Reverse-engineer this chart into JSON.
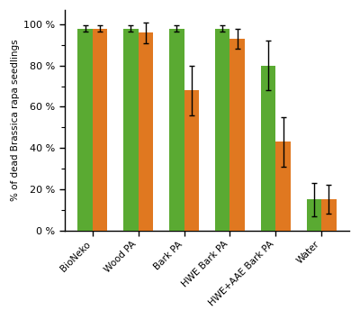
{
  "categories": [
    "BioNeko",
    "Wood PA",
    "Bark PA",
    "HWE Bark PA",
    "HWE+AAE Bark PA",
    "Water"
  ],
  "values_12_5": [
    98,
    98,
    98,
    98,
    80,
    15
  ],
  "values_5": [
    98,
    96,
    68,
    93,
    43,
    15
  ],
  "err_12_5": [
    1.5,
    1.5,
    1.5,
    1.5,
    12,
    8
  ],
  "err_5": [
    1.5,
    5,
    12,
    5,
    12,
    7
  ],
  "color_12_5": "#5aaa32",
  "color_5": "#e07820",
  "ylabel": "% of dead Brassica rapa seedlings",
  "ylim": [
    0,
    107
  ],
  "yticks": [
    0,
    20,
    40,
    60,
    80,
    100
  ],
  "ytick_labels": [
    "0 %",
    "20 %",
    "40 %",
    "60 %",
    "80 %",
    "100 %"
  ],
  "bar_width": 0.32,
  "background_color": "#ffffff"
}
